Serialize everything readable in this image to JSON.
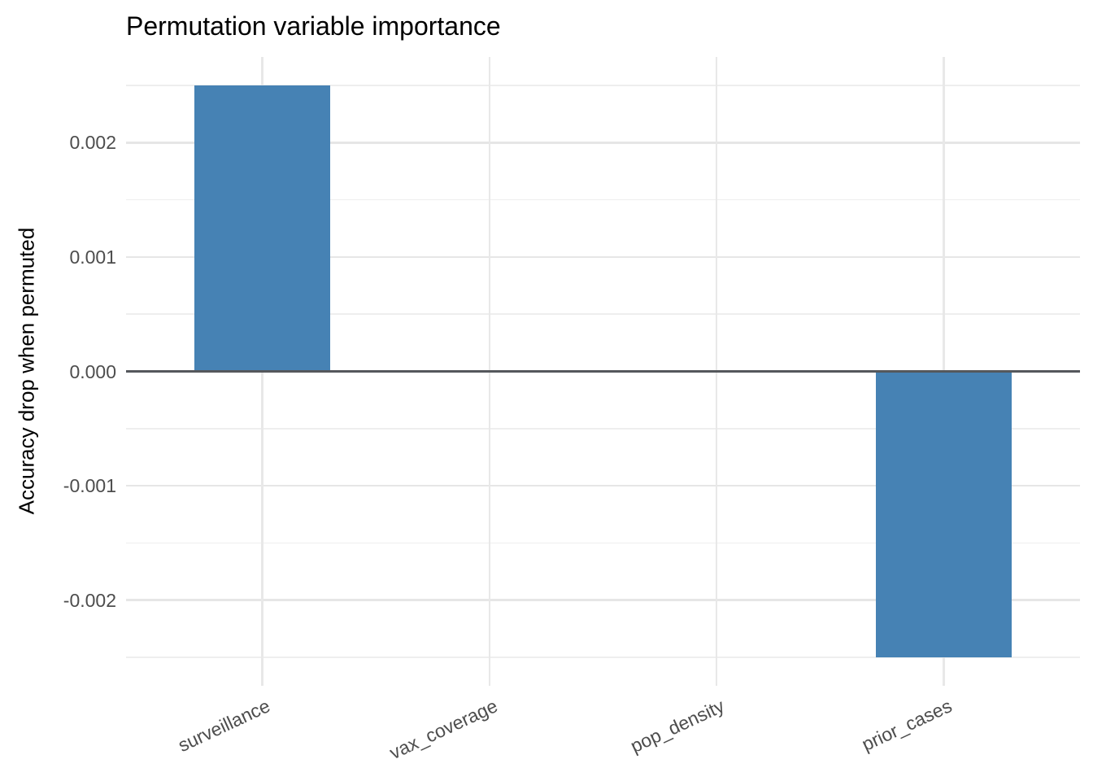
{
  "chart_data": {
    "type": "bar",
    "title": "Permutation variable importance",
    "xlabel": "",
    "ylabel": "Accuracy drop when permuted",
    "categories": [
      "surveillance",
      "vax_coverage",
      "pop_density",
      "prior_cases"
    ],
    "values": [
      0.0025,
      0,
      0,
      -0.0025
    ],
    "ylim": [
      -0.00275,
      0.00275
    ],
    "yticks_major": [
      -0.002,
      -0.001,
      0,
      0.001,
      0.002
    ],
    "ytick_labels": [
      "-0.002",
      "-0.001",
      "0.000",
      "0.001",
      "0.002"
    ],
    "yticks_minor": [
      -0.0025,
      -0.0015,
      -0.0005,
      0.0005,
      0.0015,
      0.0025
    ],
    "grid": true,
    "legend_position": "none",
    "bar_color": "#4682b4",
    "zero_line_color": "#55585c",
    "axis_text_color": "#4d4d4d",
    "background_color": "#ffffff",
    "grid_color_major": "#e6e6e6",
    "grid_color_minor": "#eeeeee",
    "x_label_angle_deg": 25,
    "bar_width_fraction": 0.6
  }
}
